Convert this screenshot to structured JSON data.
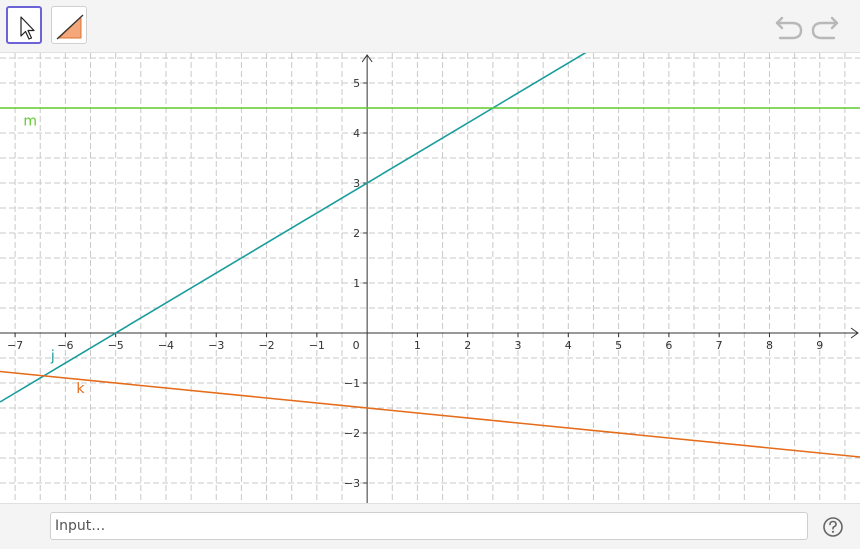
{
  "toolbar": {
    "tools": [
      {
        "icon": "move-tool-icon",
        "selected": true
      },
      {
        "icon": "line-tool-icon",
        "selected": false
      }
    ],
    "undo_icon": "undo-icon",
    "redo_icon": "redo-icon"
  },
  "graphics": {
    "x_range": [
      -7.3,
      9.8
    ],
    "y_range": [
      -3.4,
      5.6
    ],
    "x_ticks": [
      "−7",
      "−6",
      "−5",
      "−4",
      "−3",
      "−2",
      "−1",
      "0",
      "1",
      "2",
      "3",
      "4",
      "5",
      "6",
      "7",
      "8",
      "9"
    ],
    "y_ticks": [
      "−3",
      "−2",
      "−1",
      "1",
      "2",
      "3",
      "4",
      "5"
    ],
    "origin_label": "0",
    "lines": [
      {
        "name": "j",
        "slope": 0.6,
        "intercept": 3.0,
        "color": "#1a9c9c"
      },
      {
        "name": "k",
        "slope": -0.1,
        "intercept": -1.5,
        "color": "#e56c1a"
      },
      {
        "name": "m",
        "slope": 0,
        "intercept": 4.5,
        "color": "#5fcc2e"
      }
    ]
  },
  "input_bar": {
    "placeholder": "Input…",
    "help_icon": "help-icon"
  }
}
